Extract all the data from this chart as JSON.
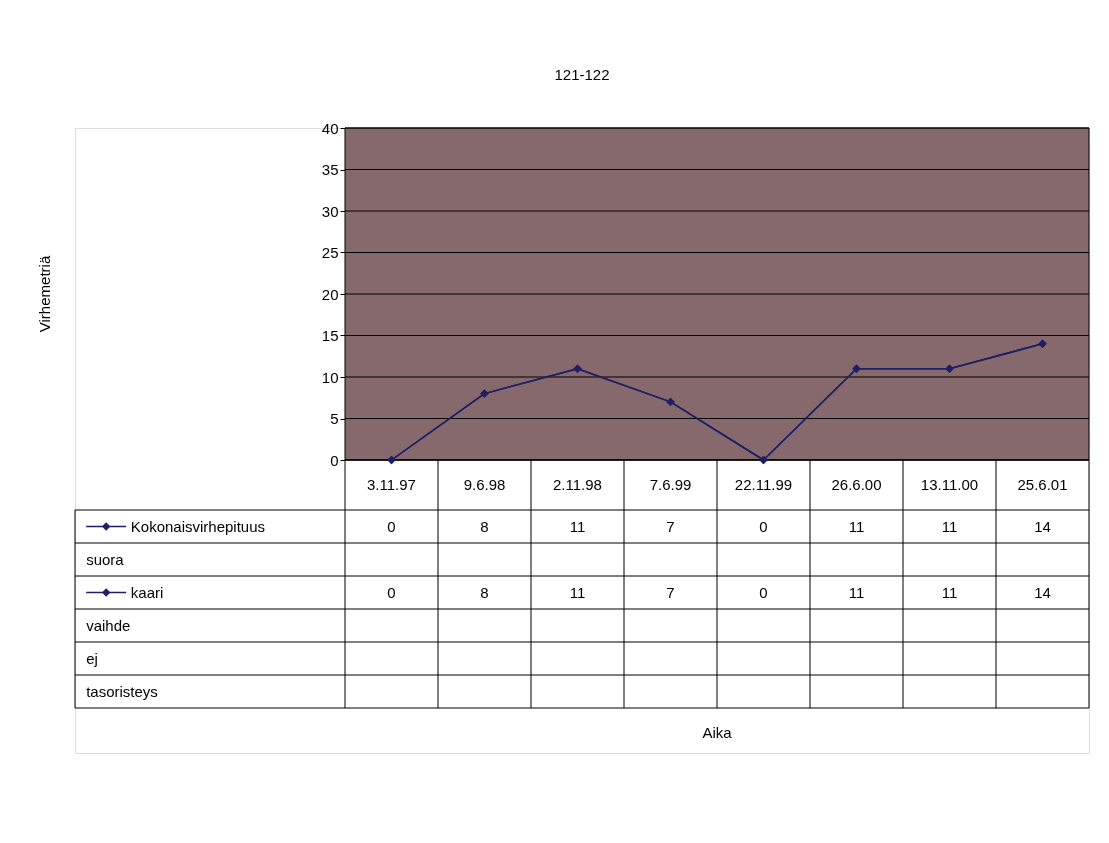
{
  "chart_data": {
    "type": "line",
    "title": "121-122",
    "annotations": [
      "Virhemetriä",
      "Aika"
    ],
    "categories": [
      "3.11.97",
      "9.6.98",
      "2.11.98",
      "7.6.99",
      "22.11.99",
      "26.6.00",
      "13.11.00",
      "25.6.01"
    ],
    "series": [
      {
        "name": "Kokonaisvirhepituus",
        "color": "#1f1f66",
        "values": [
          0,
          8,
          11,
          7,
          0,
          11,
          11,
          14
        ]
      },
      {
        "name": "suora",
        "values": [
          null,
          null,
          null,
          null,
          null,
          null,
          null,
          null
        ]
      },
      {
        "name": "kaari",
        "color": "#1f1f66",
        "values": [
          0,
          8,
          11,
          7,
          0,
          11,
          11,
          14
        ]
      },
      {
        "name": "vaihde",
        "values": [
          null,
          null,
          null,
          null,
          null,
          null,
          null,
          null
        ]
      },
      {
        "name": "ej",
        "values": [
          null,
          null,
          null,
          null,
          null,
          null,
          null,
          null
        ]
      },
      {
        "name": "tasoristeys",
        "values": [
          null,
          null,
          null,
          null,
          null,
          null,
          null,
          null
        ]
      }
    ],
    "ylim": [
      0,
      40
    ],
    "yticks": [
      0,
      5,
      10,
      15,
      20,
      25,
      30,
      35,
      40
    ],
    "grid": "y",
    "legend": "bottom left",
    "marker": "diamond",
    "data_labels": true
  }
}
